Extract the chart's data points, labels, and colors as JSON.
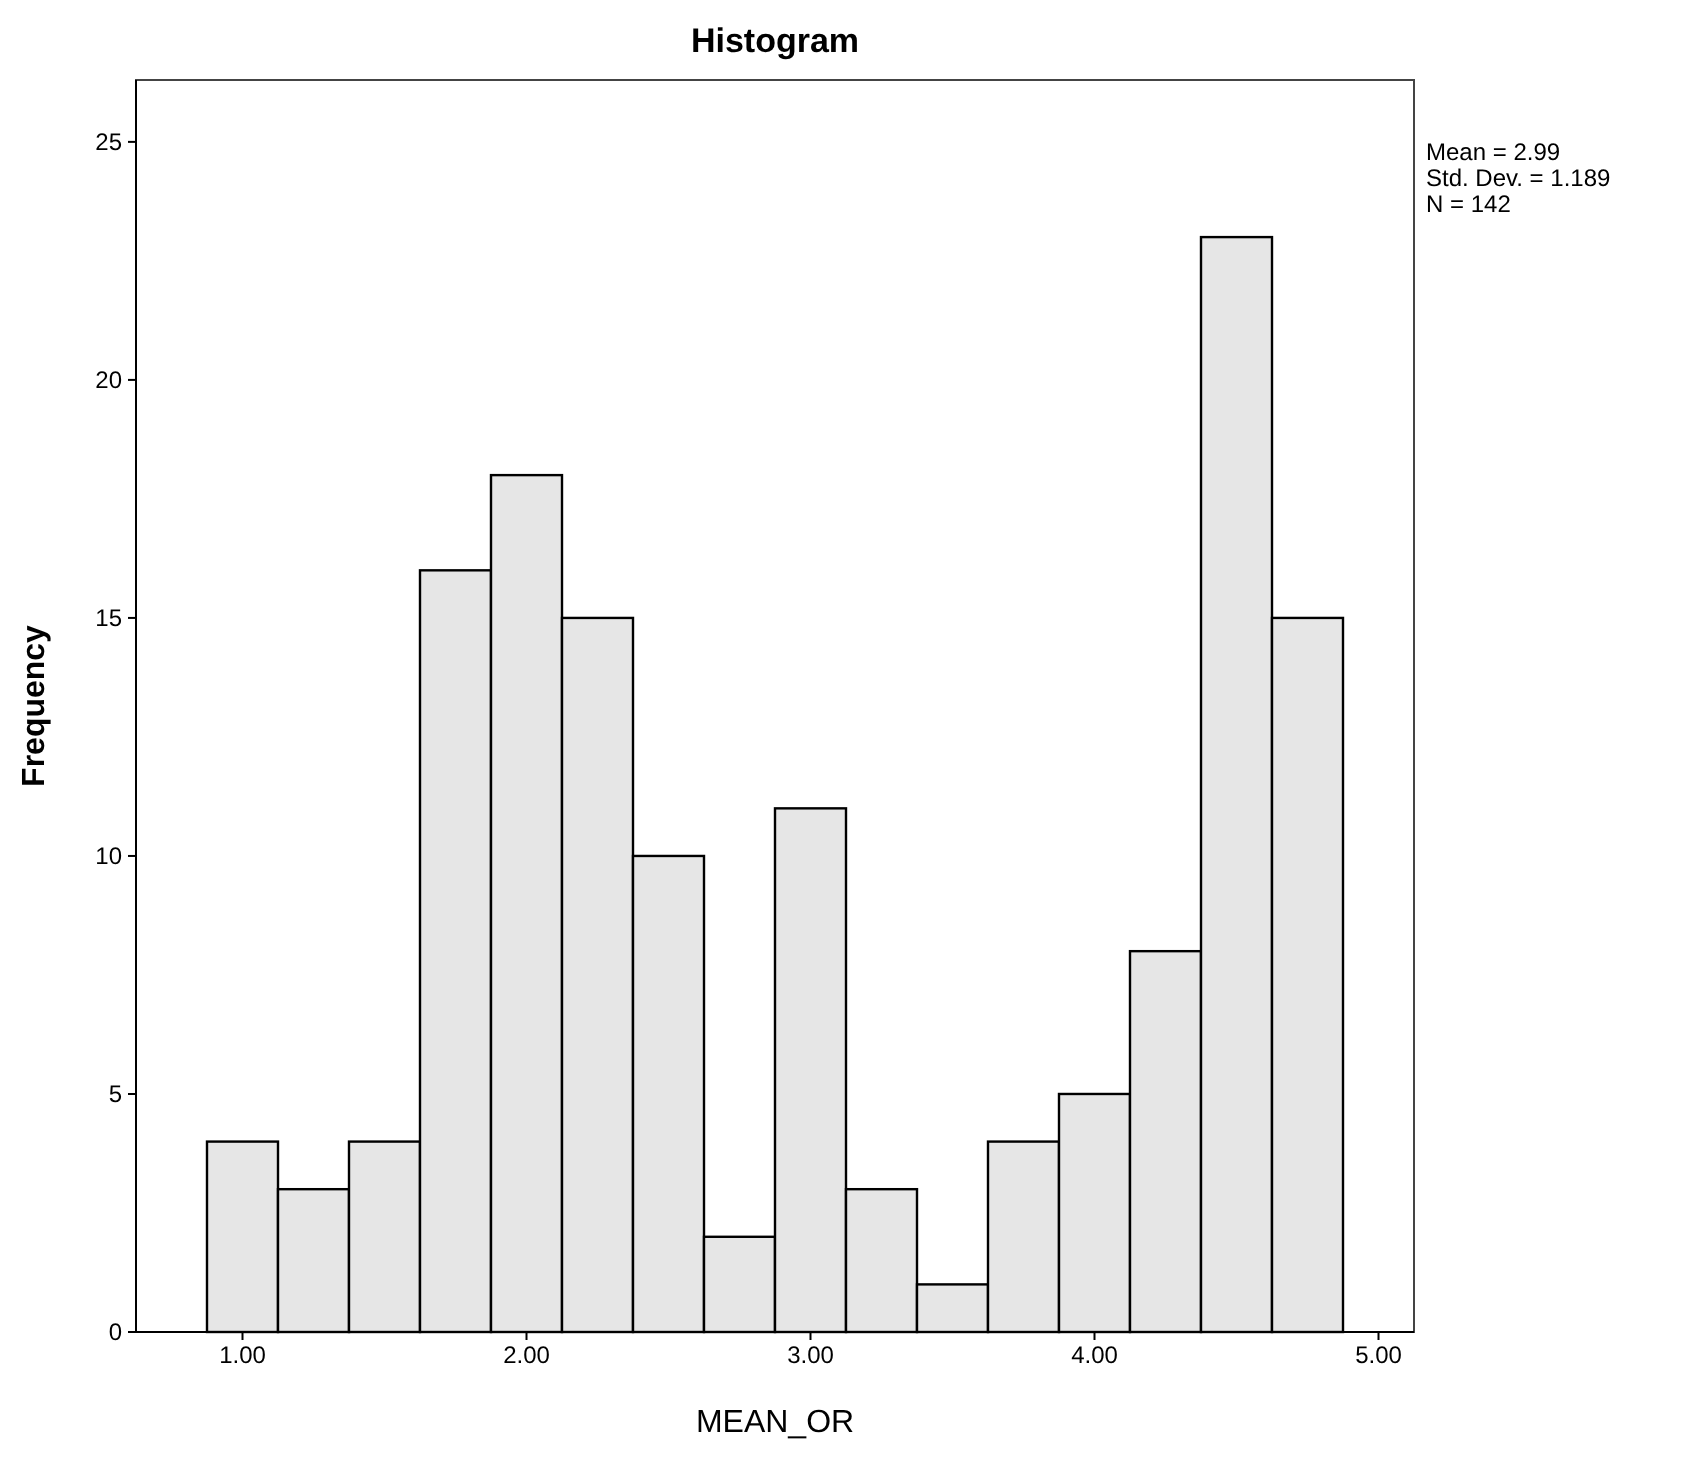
{
  "chart_data": {
    "type": "histogram",
    "title": "Histogram",
    "xlabel": "MEAN_OR",
    "ylabel": "Frequency",
    "bins": [
      0.875,
      1.125,
      1.375,
      1.625,
      1.875,
      2.125,
      2.375,
      2.625,
      2.875,
      3.125,
      3.375,
      3.625,
      3.875,
      4.125,
      4.375,
      4.625,
      4.875
    ],
    "values": [
      4,
      3,
      4,
      16,
      18,
      15,
      10,
      2,
      11,
      3,
      1,
      4,
      5,
      8,
      23,
      15
    ],
    "color": "#e6e6e6",
    "xlim": [
      0.625,
      5.125
    ],
    "xticks": [
      {
        "value": 1,
        "label": "1.00"
      },
      {
        "value": 2,
        "label": "2.00"
      },
      {
        "value": 3,
        "label": "3.00"
      },
      {
        "value": 4,
        "label": "4.00"
      },
      {
        "value": 5,
        "label": "5.00"
      }
    ],
    "ylim": [
      0,
      26.3
    ],
    "yticks": [
      0,
      5,
      10,
      15,
      20,
      25
    ],
    "annotations": [
      "Mean = 2.99",
      "Std. Dev. = 1.189",
      "N = 142"
    ],
    "grid": false
  }
}
